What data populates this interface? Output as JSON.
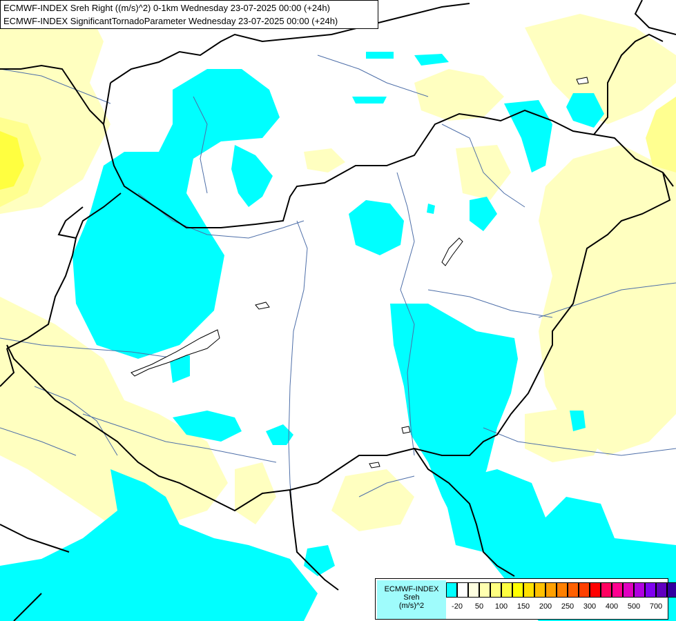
{
  "header": {
    "line1": "ECMWF-INDEX Sreh Right ((m/s)^2) 0-1km Wednesday 23-07-2025 00:00 (+24h)",
    "line2": "ECMWF-INDEX SignificantTornadoParameter Wednesday 23-07-2025 00:00 (+24h)"
  },
  "colors": {
    "cyan": "#00ffff",
    "pale_yellow": "#ffffc0",
    "yellow": "#ffff40",
    "border": "#000000",
    "river": "#4d6ea8"
  },
  "legend": {
    "label_line1": "ECMWF-INDEX",
    "label_line2": "Sreh",
    "label_line3": "(m/s)^2",
    "swatches": [
      "#00ffff",
      "#ffffff",
      "#ffffe0",
      "#ffffb0",
      "#ffff80",
      "#ffff40",
      "#ffff00",
      "#ffe000",
      "#ffc000",
      "#ffa000",
      "#ff8000",
      "#ff6000",
      "#ff4000",
      "#ff0000",
      "#ff0060",
      "#ff0090",
      "#e000c0",
      "#b000e0",
      "#8000f0",
      "#6000c0",
      "#3000a0",
      "#000080"
    ],
    "ticks": [
      "-20",
      "50",
      "100",
      "150",
      "200",
      "250",
      "300",
      "400",
      "500",
      "700"
    ]
  }
}
